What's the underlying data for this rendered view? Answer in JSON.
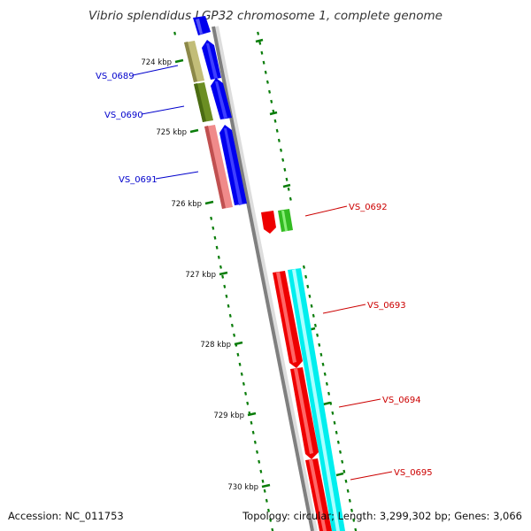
{
  "title": "Vibrio splendidus LGP32 chromosome 1, complete genome",
  "footer": {
    "accession": "Accession: NC_011753",
    "stats": "Topology: circular; Length: 3,299,302 bp; Genes: 3,066"
  },
  "colors": {
    "backbone": "#7f7f7f",
    "tick": "#0a7d0a",
    "forward_label": "#0000cc",
    "reverse_label": "#cc0000",
    "blue": "#0000ee",
    "red": "#ee0000",
    "cyan": "#00eeee",
    "green": "#33bb22",
    "olive": "#6b8e23",
    "khaki": "#b5b060",
    "pink": "#f08080"
  },
  "kbp_ticks": [
    {
      "label": "724 kbp"
    },
    {
      "label": "725 kbp"
    },
    {
      "label": "726 kbp"
    },
    {
      "label": "727 kbp"
    },
    {
      "label": "728 kbp"
    },
    {
      "label": "729 kbp"
    },
    {
      "label": "730 kbp"
    }
  ],
  "gene_labels": [
    {
      "label": "VS_0689",
      "strand": "forward"
    },
    {
      "label": "VS_0690",
      "strand": "forward"
    },
    {
      "label": "VS_0691",
      "strand": "forward"
    },
    {
      "label": "VS_0692",
      "strand": "reverse"
    },
    {
      "label": "VS_0693",
      "strand": "reverse"
    },
    {
      "label": "VS_0694",
      "strand": "reverse"
    },
    {
      "label": "VS_0695",
      "strand": "reverse"
    }
  ]
}
